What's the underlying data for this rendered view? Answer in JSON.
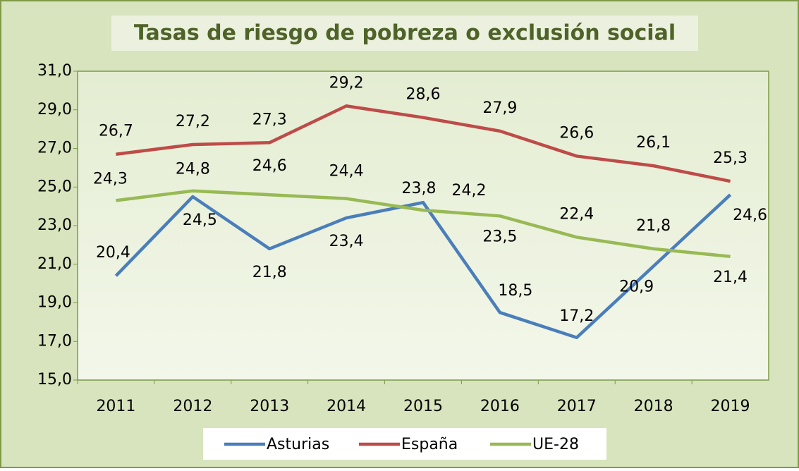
{
  "chart_data": {
    "type": "line",
    "title": "Tasas de riesgo de pobreza o exclusión social",
    "categories": [
      "2011",
      "2012",
      "2013",
      "2014",
      "2015",
      "2016",
      "2017",
      "2018",
      "2019"
    ],
    "series": [
      {
        "name": "Asturias",
        "color": "#4a7ebb",
        "values": [
          20.4,
          24.5,
          21.8,
          23.4,
          24.2,
          18.5,
          17.2,
          20.9,
          24.6
        ],
        "value_labels": [
          "20,4",
          "24,5",
          "21,8",
          "23,4",
          "24,2",
          "18,5",
          "17,2",
          "20,9",
          "24,6"
        ]
      },
      {
        "name": "España",
        "color": "#be4b48",
        "values": [
          26.7,
          27.2,
          27.3,
          29.2,
          28.6,
          27.9,
          26.6,
          26.1,
          25.3
        ],
        "value_labels": [
          "26,7",
          "27,2",
          "27,3",
          "29,2",
          "28,6",
          "27,9",
          "26,6",
          "26,1",
          "25,3"
        ]
      },
      {
        "name": "UE-28",
        "color": "#98b954",
        "values": [
          24.3,
          24.8,
          24.6,
          24.4,
          23.8,
          23.5,
          22.4,
          21.8,
          21.4
        ],
        "value_labels": [
          "24,3",
          "24,8",
          "24,6",
          "24,4",
          "23,8",
          "23,5",
          "22,4",
          "21,8",
          "21,4"
        ]
      }
    ],
    "ylim": [
      15,
      31
    ],
    "yticks": [
      {
        "value": 15,
        "label": "15,0"
      },
      {
        "value": 17,
        "label": "17,0"
      },
      {
        "value": 19,
        "label": "19,0"
      },
      {
        "value": 21,
        "label": "21,0"
      },
      {
        "value": 23,
        "label": "23,0"
      },
      {
        "value": 25,
        "label": "25,0"
      },
      {
        "value": 27,
        "label": "27,0"
      },
      {
        "value": 29,
        "label": "29,0"
      },
      {
        "value": 31,
        "label": "31,0"
      }
    ],
    "legend": "bottom"
  }
}
